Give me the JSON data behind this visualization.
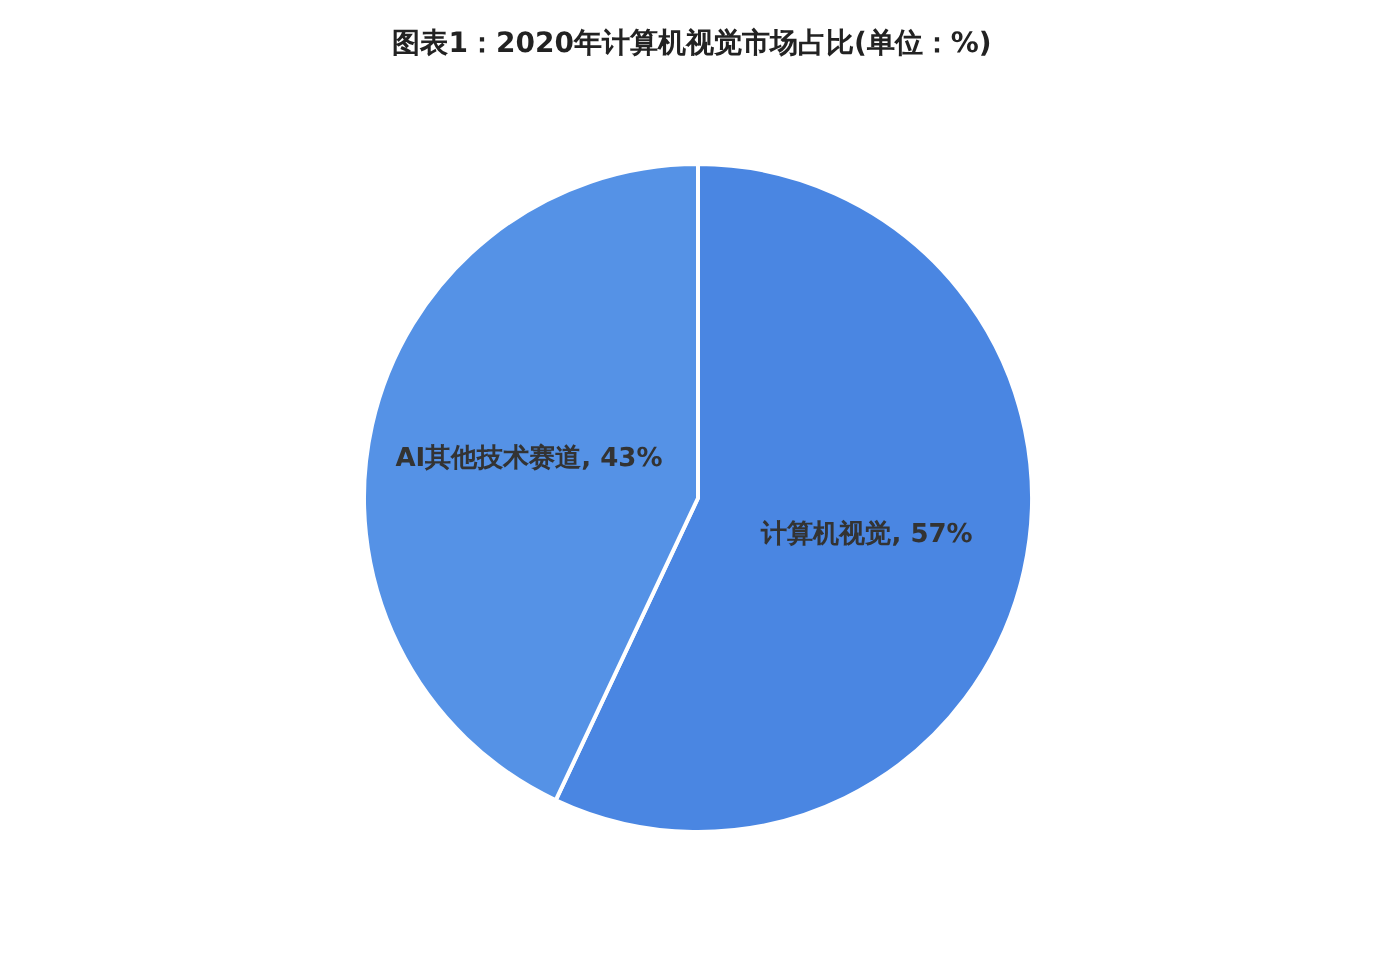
{
  "chart_data": {
    "type": "pie",
    "title": "图表1：2020年计算机视觉市场占比(单位：%)",
    "categories": [
      "计算机视觉",
      "AI其他技术赛道"
    ],
    "values": [
      57,
      43
    ],
    "colors": [
      "#4a86e2",
      "#5592e6"
    ],
    "value_labels": [
      "57%",
      "43%"
    ],
    "legend": false
  }
}
